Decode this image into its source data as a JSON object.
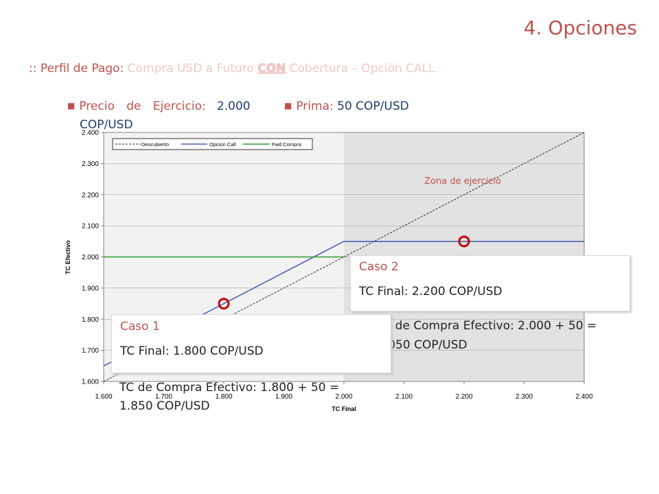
{
  "slide": {
    "title": "4. Opciones",
    "subtitle_prefix": ":: Perfil de Pago: ",
    "subtitle_part1": "Compra USD a Futuro ",
    "subtitle_con": "CON",
    "subtitle_part2": " Cobertura – Opción CALL",
    "param1_label": "Precio de Ejercicio:",
    "param1_value": "2.000",
    "param1_unit": "COP/USD",
    "param2_label": "Prima:",
    "param2_value": "50 COP/USD"
  },
  "chart_data": {
    "type": "line",
    "xlabel": "TC Final",
    "ylabel": "TC Efectivo",
    "xlim": [
      1600,
      2400
    ],
    "ylim": [
      1600,
      2400
    ],
    "x_ticks": [
      "1.600",
      "1.700",
      "1.800",
      "1.900",
      "2.000",
      "2.100",
      "2.200",
      "2.300",
      "2.400"
    ],
    "y_ticks": [
      "1.600",
      "1.700",
      "1.800",
      "1.900",
      "2.000",
      "2.100",
      "2.200",
      "2.300",
      "2.400"
    ],
    "grid": "horizontal",
    "legend_position": "top-left",
    "series": [
      {
        "name": "Descubierto",
        "color": "#222222",
        "style": "dashed",
        "x": [
          1600,
          2400
        ],
        "y": [
          1600,
          2400
        ]
      },
      {
        "name": "Opcion Call",
        "color": "#4a5fae",
        "style": "solid",
        "x": [
          1600,
          2000,
          2400
        ],
        "y": [
          1650,
          2050,
          2050
        ]
      },
      {
        "name": "Fwd Compra",
        "color": "#2e9a2e",
        "style": "solid",
        "x": [
          1600,
          2000
        ],
        "y": [
          2000,
          2000
        ]
      }
    ],
    "shaded_region": {
      "label": "Zona de ejercicio",
      "x_from": 2000,
      "x_to": 2400,
      "color": "#e2e2e2"
    },
    "markers": [
      {
        "x": 1800,
        "y": 1850,
        "color": "#c00000"
      },
      {
        "x": 2200,
        "y": 2050,
        "color": "#c00000"
      }
    ]
  },
  "cases": {
    "case1": {
      "title": "Caso 1",
      "final": "TC Final: 1.800 COP/USD",
      "effective_1": "TC de Compra Efectivo: 1.800 + 50 =",
      "effective_2": "1.850 COP/USD"
    },
    "case2": {
      "title": "Caso 2",
      "final": "TC Final: 2.200 COP/USD",
      "effective_1": "TC de Compra Efectivo: 2.000 + 50 =",
      "effective_2": "2.050 COP/USD"
    }
  }
}
